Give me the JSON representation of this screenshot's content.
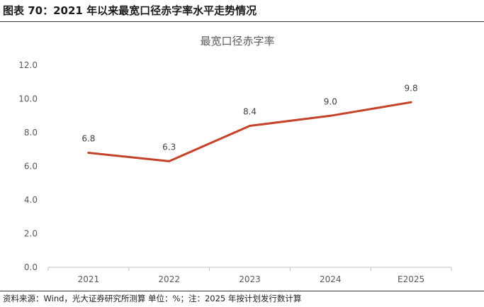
{
  "figure": {
    "title": "图表 70：2021 年以来最宽口径赤字率水平走势情况",
    "source": "资料来源：Wind，光大证券研究所测算 单位：%；注：2025 年按计划发行数计算"
  },
  "colors": {
    "line": "#C5432A",
    "axis": "#BFBFBF",
    "text": "#595959"
  },
  "chart_data": {
    "type": "line",
    "title": "最宽口径赤字率",
    "categories": [
      "2021",
      "2022",
      "2023",
      "2024",
      "E2025"
    ],
    "series": [
      {
        "name": "最宽口径赤字率",
        "values": [
          6.8,
          6.3,
          8.4,
          9.0,
          9.8
        ]
      }
    ],
    "data_labels": [
      "6.8",
      "6.3",
      "8.4",
      "9.0",
      "9.8"
    ],
    "yticks": [
      "0.0",
      "2.0",
      "4.0",
      "6.0",
      "8.0",
      "10.0",
      "12.0"
    ],
    "ylim": [
      0,
      12
    ],
    "xlabel": "",
    "ylabel": "",
    "grid": false,
    "legend": "none"
  }
}
